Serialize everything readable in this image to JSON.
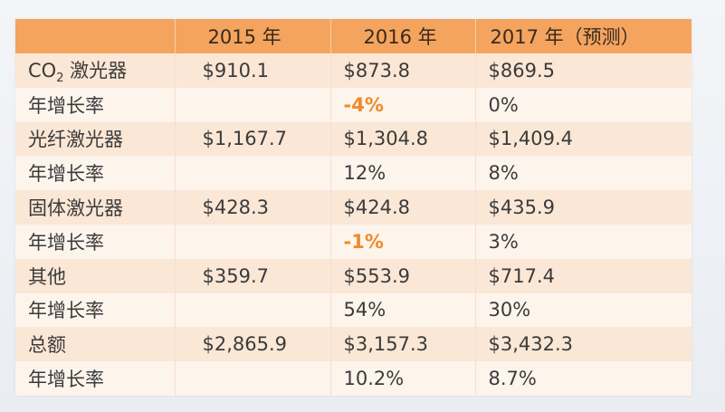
{
  "table": {
    "headers": [
      "",
      "2015 年",
      "2016 年",
      "2017 年（预测）"
    ],
    "rows": [
      {
        "label_main": "CO",
        "label_sub": "2",
        "label_rest": " 激光器",
        "v2015": "$910.1",
        "v2016": "$873.8",
        "v2017": "$869.5"
      },
      {
        "label": "年增长率",
        "v2015": "",
        "v2016": "-4%",
        "v2017": "0%"
      },
      {
        "label": "光纤激光器",
        "v2015": "$1,167.7",
        "v2016": "$1,304.8",
        "v2017": "$1,409.4"
      },
      {
        "label": "年增长率",
        "v2015": "",
        "v2016": "12%",
        "v2017": "8%"
      },
      {
        "label": "固体激光器",
        "v2015": "$428.3",
        "v2016": "$424.8",
        "v2017": "$435.9"
      },
      {
        "label": "年增长率",
        "v2015": "",
        "v2016": "-1%",
        "v2017": "3%"
      },
      {
        "label": "其他",
        "v2015": "$359.7",
        "v2016": "$553.9",
        "v2017": "$717.4"
      },
      {
        "label": "年增长率",
        "v2015": "",
        "v2016": "54%",
        "v2017": "30%"
      },
      {
        "label": "总额",
        "v2015": "$2,865.9",
        "v2016": "$3,157.3",
        "v2017": "$3,432.3"
      },
      {
        "label": "年增长率",
        "v2015": "",
        "v2016": "10.2%",
        "v2017": "8.7%"
      }
    ]
  },
  "colors": {
    "header_bg": "#f4a45f",
    "row_odd_bg": "#fbe7d6",
    "row_even_bg": "#fdf4ec",
    "negative_text": "#ef8a2b"
  }
}
